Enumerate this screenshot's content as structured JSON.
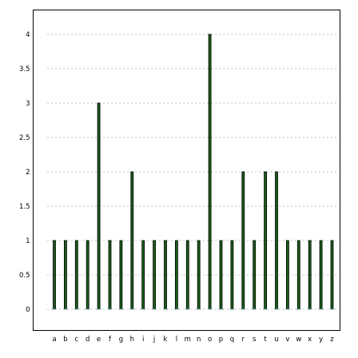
{
  "chart_data": {
    "type": "bar",
    "categories": [
      "a",
      "b",
      "c",
      "d",
      "e",
      "f",
      "g",
      "h",
      "i",
      "j",
      "k",
      "l",
      "m",
      "n",
      "o",
      "p",
      "q",
      "r",
      "s",
      "t",
      "u",
      "v",
      "w",
      "x",
      "y",
      "z"
    ],
    "values": [
      1,
      1,
      1,
      1,
      3,
      1,
      1,
      2,
      1,
      1,
      1,
      1,
      1,
      1,
      4,
      1,
      1,
      2,
      1,
      2,
      2,
      1,
      1,
      1,
      1,
      1
    ],
    "title": "",
    "xlabel": "",
    "ylabel": "",
    "ylim": [
      0,
      4
    ],
    "yticks": [
      0,
      0.5,
      1,
      1.5,
      2,
      2.5,
      3,
      3.5,
      4
    ],
    "ytick_labels": [
      "0",
      "0.5",
      "1",
      "1.5",
      "2",
      "2.5",
      "3",
      "3.5",
      "4"
    ],
    "grid": true,
    "colors": {
      "bar_fill": "#1a5e1a",
      "bar_edge": "#000000",
      "grid": "#888888",
      "axes": "#000000"
    }
  }
}
